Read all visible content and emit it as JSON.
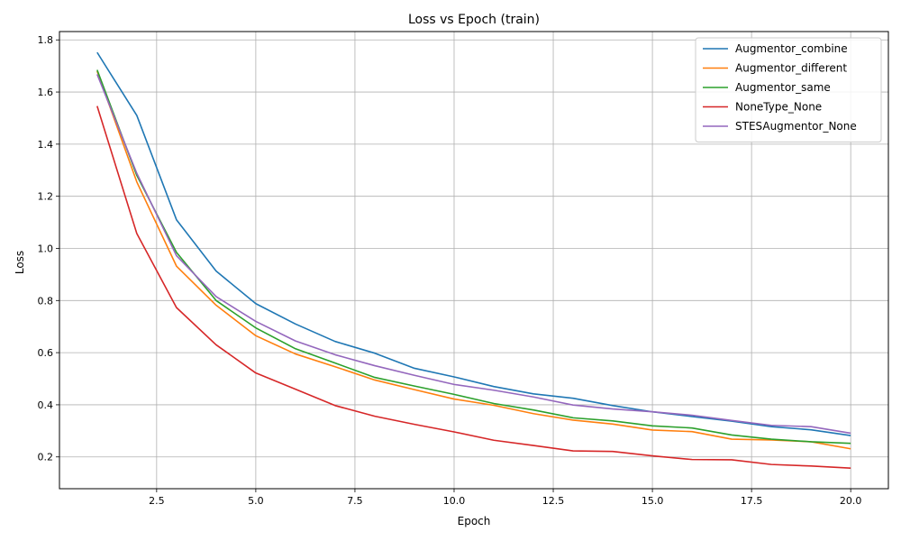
{
  "chart_data": {
    "type": "line",
    "title": "Loss vs Epoch (train)",
    "xlabel": "Epoch",
    "ylabel": "Loss",
    "xlim": [
      0.05,
      20.95
    ],
    "ylim": [
      0.078,
      1.832
    ],
    "xticks": [
      2.5,
      5.0,
      7.5,
      10.0,
      12.5,
      15.0,
      17.5,
      20.0
    ],
    "xtick_labels": [
      "2.5",
      "5.0",
      "7.5",
      "10.0",
      "12.5",
      "15.0",
      "17.5",
      "20.0"
    ],
    "yticks": [
      0.2,
      0.4,
      0.6,
      0.8,
      1.0,
      1.2,
      1.4,
      1.6,
      1.8
    ],
    "ytick_labels": [
      "0.2",
      "0.4",
      "0.6",
      "0.8",
      "1.0",
      "1.2",
      "1.4",
      "1.6",
      "1.8"
    ],
    "grid": true,
    "legend_position": "top-right",
    "x": [
      1,
      2,
      3,
      4,
      5,
      6,
      7,
      8,
      9,
      10,
      11,
      12,
      13,
      14,
      15,
      16,
      17,
      18,
      19,
      20
    ],
    "series": [
      {
        "name": "Augmentor_combine",
        "color": "#1f77b4",
        "values": [
          1.752,
          1.51,
          1.11,
          0.913,
          0.788,
          0.71,
          0.643,
          0.598,
          0.54,
          0.507,
          0.47,
          0.442,
          0.425,
          0.397,
          0.373,
          0.355,
          0.337,
          0.316,
          0.304,
          0.282
        ]
      },
      {
        "name": "Augmentor_different",
        "color": "#ff7f0e",
        "values": [
          1.68,
          1.255,
          0.932,
          0.782,
          0.665,
          0.595,
          0.546,
          0.495,
          0.458,
          0.422,
          0.398,
          0.366,
          0.341,
          0.326,
          0.303,
          0.297,
          0.268,
          0.265,
          0.258,
          0.231
        ]
      },
      {
        "name": "Augmentor_same",
        "color": "#2ca02c",
        "values": [
          1.685,
          1.28,
          0.985,
          0.8,
          0.695,
          0.615,
          0.56,
          0.505,
          0.472,
          0.44,
          0.405,
          0.38,
          0.35,
          0.338,
          0.319,
          0.311,
          0.284,
          0.268,
          0.258,
          0.252
        ]
      },
      {
        "name": "NoneType_None",
        "color": "#d62728",
        "values": [
          1.546,
          1.057,
          0.773,
          0.63,
          0.522,
          0.46,
          0.397,
          0.356,
          0.325,
          0.296,
          0.264,
          0.244,
          0.223,
          0.221,
          0.204,
          0.19,
          0.189,
          0.171,
          0.165,
          0.157
        ]
      },
      {
        "name": "STESAugmentor_None",
        "color": "#9467bd",
        "values": [
          1.668,
          1.288,
          0.972,
          0.815,
          0.72,
          0.645,
          0.592,
          0.55,
          0.513,
          0.478,
          0.456,
          0.43,
          0.399,
          0.384,
          0.373,
          0.36,
          0.34,
          0.321,
          0.316,
          0.291
        ]
      }
    ]
  }
}
